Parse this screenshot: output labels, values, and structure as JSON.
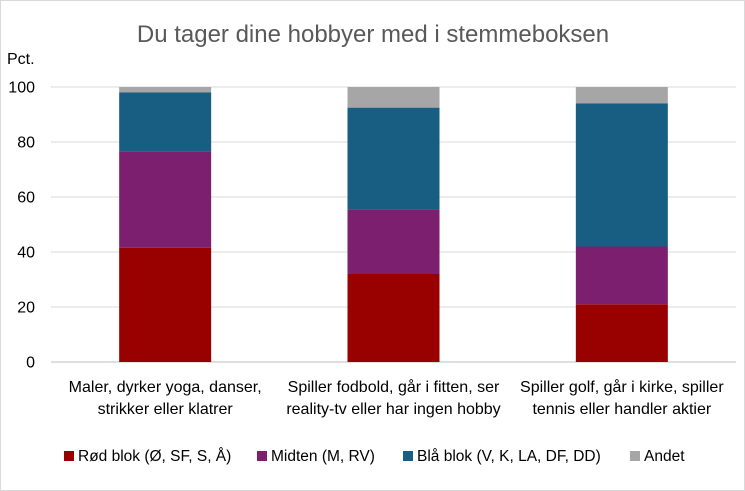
{
  "chart_data": {
    "type": "bar",
    "stacked": true,
    "title": "Du tager dine hobbyer med i stemmeboksen",
    "ylabel": "Pct.",
    "xlabel": "",
    "ylim": [
      0,
      100
    ],
    "yticks": [
      0,
      20,
      40,
      60,
      80,
      100
    ],
    "grid": true,
    "legend_position": "bottom",
    "categories": [
      [
        "Maler, dyrker yoga, danser,",
        "strikker eller klatrer"
      ],
      [
        "Spiller fodbold, går i fitten, ser",
        "reality-tv eller har ingen hobby"
      ],
      [
        "Spiller golf, går i kirke, spiller",
        "tennis eller handler aktier"
      ]
    ],
    "series": [
      {
        "name": "Rød blok (Ø, SF, S, Å)",
        "color": "#990000",
        "values": [
          41.5,
          32,
          21
        ]
      },
      {
        "name": "Midten (M, RV)",
        "color": "#7b1f6e",
        "values": [
          35,
          23.5,
          21
        ]
      },
      {
        "name": "Blå blok (V, K, LA, DF, DD)",
        "color": "#175e82",
        "values": [
          21.5,
          37,
          52
        ]
      },
      {
        "name": "Andet",
        "color": "#a6a6a6",
        "values": [
          2,
          7.5,
          6
        ]
      }
    ]
  }
}
